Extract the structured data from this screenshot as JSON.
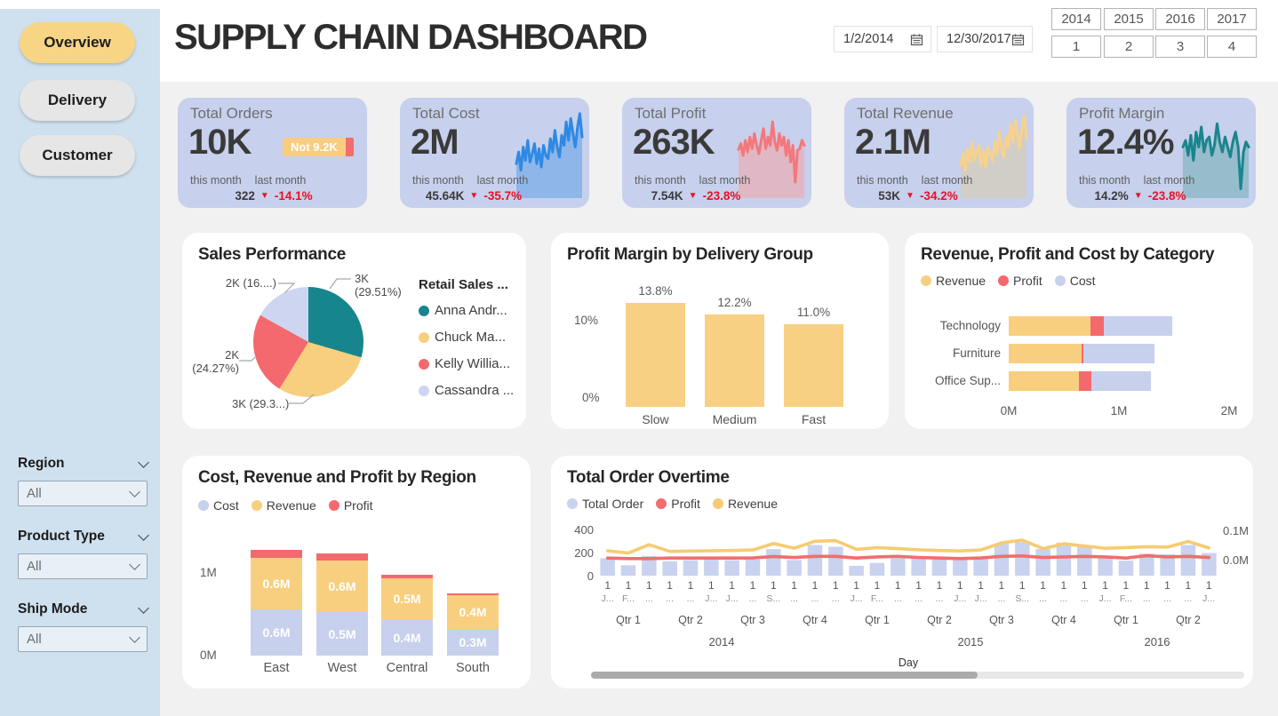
{
  "app_title": "SUPPLY CHAIN DASHBOARD",
  "sidebar": {
    "nav": [
      {
        "label": "Overview",
        "active": true
      },
      {
        "label": "Delivery",
        "active": false
      },
      {
        "label": "Customer",
        "active": false
      }
    ],
    "filters": [
      {
        "label": "Region",
        "value": "All"
      },
      {
        "label": "Product Type",
        "value": "All"
      },
      {
        "label": "Ship Mode",
        "value": "All"
      }
    ]
  },
  "header": {
    "start_date": "1/2/2014",
    "end_date": "12/30/2017",
    "years": [
      "2014",
      "2015",
      "2016",
      "2017"
    ],
    "quarters": [
      "1",
      "2",
      "3",
      "4"
    ]
  },
  "kpis": [
    {
      "title": "Total Orders",
      "value": "10K",
      "badge_label": "Not 9.2K",
      "this_month_label": "this month",
      "last_month_label": "last month",
      "last_month_value": "322",
      "delta_icon": "▼",
      "delta": "-14.1%"
    },
    {
      "title": "Total Cost",
      "value": "2M",
      "this_month_label": "this month",
      "last_month_label": "last month",
      "last_month_value": "45.64K",
      "delta_icon": "▼",
      "delta": "-35.7%",
      "sparkline": {
        "color": "#2E89E5",
        "fill": "#5EA0E8",
        "values": [
          38,
          52,
          30,
          58,
          42,
          66,
          40,
          50,
          62,
          38,
          56,
          34,
          60,
          48,
          44,
          68,
          52,
          78,
          58,
          46,
          72,
          60,
          88,
          66,
          92,
          74,
          58,
          82,
          98,
          70
        ]
      }
    },
    {
      "title": "Total Profit",
      "value": "263K",
      "this_month_label": "this month",
      "last_month_label": "last month",
      "last_month_value": "7.54K",
      "delta_icon": "▼",
      "delta": "-23.8%",
      "sparkline": {
        "color": "#F4777A",
        "fill": "#F4A3A5",
        "values": [
          55,
          62,
          48,
          66,
          52,
          70,
          56,
          74,
          60,
          50,
          66,
          80,
          56,
          70,
          60,
          88,
          64,
          54,
          74,
          60,
          70,
          48,
          66,
          40,
          60,
          16,
          54,
          56,
          66,
          60
        ]
      }
    },
    {
      "title": "Total Revenue",
      "value": "2.1M",
      "this_month_label": "this month",
      "last_month_label": "last month",
      "last_month_value": "53K",
      "delta_icon": "▼",
      "delta": "-34.2%",
      "sparkline": {
        "color": "#F8D28D",
        "fill": "#D8CCAC",
        "values": [
          36,
          50,
          30,
          56,
          40,
          64,
          42,
          52,
          60,
          36,
          54,
          34,
          58,
          48,
          42,
          66,
          50,
          76,
          56,
          46,
          70,
          58,
          86,
          64,
          90,
          72,
          56,
          80,
          96,
          68
        ]
      }
    },
    {
      "title": "Profit Margin",
      "value": "12.4%",
      "this_month_label": "this month",
      "last_month_label": "last month",
      "last_month_value": "14.2%",
      "delta_icon": "▼",
      "delta": "-23.8%",
      "sparkline": {
        "color": "#1A858D",
        "fill": "#6FADB3",
        "values": [
          58,
          66,
          48,
          72,
          42,
          76,
          58,
          82,
          52,
          66,
          70,
          48,
          60,
          86,
          64,
          52,
          70,
          58,
          46,
          64,
          76,
          58,
          8,
          52,
          64,
          58
        ]
      }
    }
  ],
  "chart_data": [
    {
      "type": "pie",
      "title": "Sales Performance",
      "legend_title": "Retail Sales ...",
      "slices": [
        {
          "label": "Anna Andr...",
          "value": "3K",
          "pct": 29.51,
          "callout": [
            "3K",
            "(29.51%)"
          ],
          "color": "#17868C"
        },
        {
          "label": "Chuck Ma...",
          "value": "3K",
          "pct": 29.3,
          "callout": [
            "3K (29.3...)"
          ],
          "color": "#F8CF7E"
        },
        {
          "label": "Kelly Willia...",
          "value": "2K",
          "pct": 24.27,
          "callout": [
            "2K",
            "(24.27%)"
          ],
          "color": "#F4696E"
        },
        {
          "label": "Cassandra ...",
          "value": "2K",
          "pct": 16.92,
          "callout": [
            "2K (16....)"
          ],
          "color": "#CDD5F0"
        }
      ]
    },
    {
      "type": "bar",
      "title": "Profit Margin by Delivery Group",
      "categories": [
        "Slow",
        "Medium",
        "Fast"
      ],
      "values": [
        13.8,
        12.2,
        11.0
      ],
      "labels": [
        "13.8%",
        "12.2%",
        "11.0%"
      ],
      "yticks": [
        "0%",
        "10%"
      ],
      "ylim": [
        0,
        16
      ],
      "bar_color": "#F8D084"
    },
    {
      "type": "hbar-stacked",
      "title": "Revenue, Profit and Cost by Category",
      "legend": [
        {
          "name": "Revenue",
          "color": "#F8CF7E"
        },
        {
          "name": "Profit",
          "color": "#F4696E"
        },
        {
          "name": "Cost",
          "color": "#C7D0EC"
        }
      ],
      "categories": [
        "Technology",
        "Furniture",
        "Office Sup..."
      ],
      "series": [
        {
          "name": "Revenue",
          "values": [
            0.74,
            0.66,
            0.64
          ]
        },
        {
          "name": "Profit",
          "values": [
            0.12,
            0.02,
            0.11
          ]
        },
        {
          "name": "Cost",
          "values": [
            0.62,
            0.64,
            0.54
          ]
        }
      ],
      "xticks": [
        "0M",
        "1M",
        "2M"
      ],
      "xlim": [
        0,
        2
      ],
      "unit": "M"
    },
    {
      "type": "bar-stacked",
      "title": "Cost, Revenue and Profit by Region",
      "legend": [
        {
          "name": "Cost",
          "color": "#C7D0EC"
        },
        {
          "name": "Revenue",
          "color": "#F8CF7E"
        },
        {
          "name": "Profit",
          "color": "#F4696E"
        }
      ],
      "categories": [
        "East",
        "West",
        "Central",
        "South"
      ],
      "series": [
        {
          "name": "Cost",
          "values": [
            0.55,
            0.52,
            0.43,
            0.32
          ],
          "labels": [
            "0.6M",
            "0.5M",
            "0.4M",
            "0.3M"
          ]
        },
        {
          "name": "Revenue",
          "values": [
            0.62,
            0.62,
            0.5,
            0.4
          ],
          "labels": [
            "0.6M",
            "0.6M",
            "0.5M",
            "0.4M"
          ]
        },
        {
          "name": "Profit",
          "values": [
            0.1,
            0.08,
            0.04,
            0.03
          ],
          "labels": [
            "",
            "",
            "",
            ""
          ]
        }
      ],
      "yticks": [
        "0M",
        "1M"
      ],
      "ylim": [
        0,
        1.4
      ],
      "unit": "M"
    },
    {
      "type": "combo",
      "title": "Total Order Overtime",
      "legend": [
        {
          "name": "Total Order",
          "color": "#C9D2EE"
        },
        {
          "name": "Profit",
          "color": "#F26D6E"
        },
        {
          "name": "Revenue",
          "color": "#F6CB72"
        }
      ],
      "left_ticks": [
        "400",
        "200",
        "0"
      ],
      "right_ticks": [
        "0.1M",
        "0.0M"
      ],
      "left_max": 500,
      "x_axis_title": "Day",
      "day_tick": "1",
      "months": [
        "J...",
        "F...",
        "...",
        "...",
        "...",
        "J...",
        "J...",
        "...",
        "S...",
        "...",
        "...",
        "...",
        "J...",
        "F...",
        "...",
        "...",
        "...",
        "J...",
        "J...",
        "...",
        "S...",
        "...",
        "...",
        "...",
        "J...",
        "F...",
        "...",
        "...",
        "...",
        "J..."
      ],
      "quarter_labels": [
        "Qtr 1",
        "Qtr 2",
        "Qtr 3",
        "Qtr 4",
        "Qtr 1",
        "Qtr 2",
        "Qtr 3",
        "Qtr 4",
        "Qtr 1",
        "Qtr 2"
      ],
      "year_labels": [
        "2014",
        "2015",
        "2016"
      ],
      "bars": [
        150,
        90,
        170,
        125,
        135,
        140,
        135,
        140,
        230,
        135,
        265,
        250,
        85,
        110,
        150,
        155,
        150,
        140,
        160,
        275,
        290,
        230,
        285,
        250,
        150,
        130,
        190,
        185,
        265,
        195
      ],
      "revenue_line": [
        215,
        195,
        268,
        210,
        213,
        215,
        218,
        222,
        278,
        238,
        298,
        303,
        228,
        242,
        234,
        224,
        218,
        214,
        222,
        283,
        308,
        234,
        276,
        256,
        237,
        243,
        251,
        247,
        296,
        240
      ],
      "profit_line": [
        152,
        148,
        148,
        152,
        152,
        152,
        152,
        153,
        166,
        157,
        167,
        167,
        152,
        162,
        167,
        157,
        152,
        148,
        153,
        167,
        171,
        157,
        162,
        167,
        162,
        152,
        172,
        162,
        167,
        157
      ]
    }
  ],
  "colors": {
    "sidebar_bg": "#CFE1EF",
    "active_pill": "#F8D585",
    "card_bg": "#C7D0EC",
    "content_bg": "#F1F1F2",
    "yellow": "#F8CF7E",
    "red": "#F4696E",
    "lavender": "#C9D2EE",
    "teal": "#17868C",
    "blue": "#2E89E5",
    "negative_red": "#E81123"
  }
}
